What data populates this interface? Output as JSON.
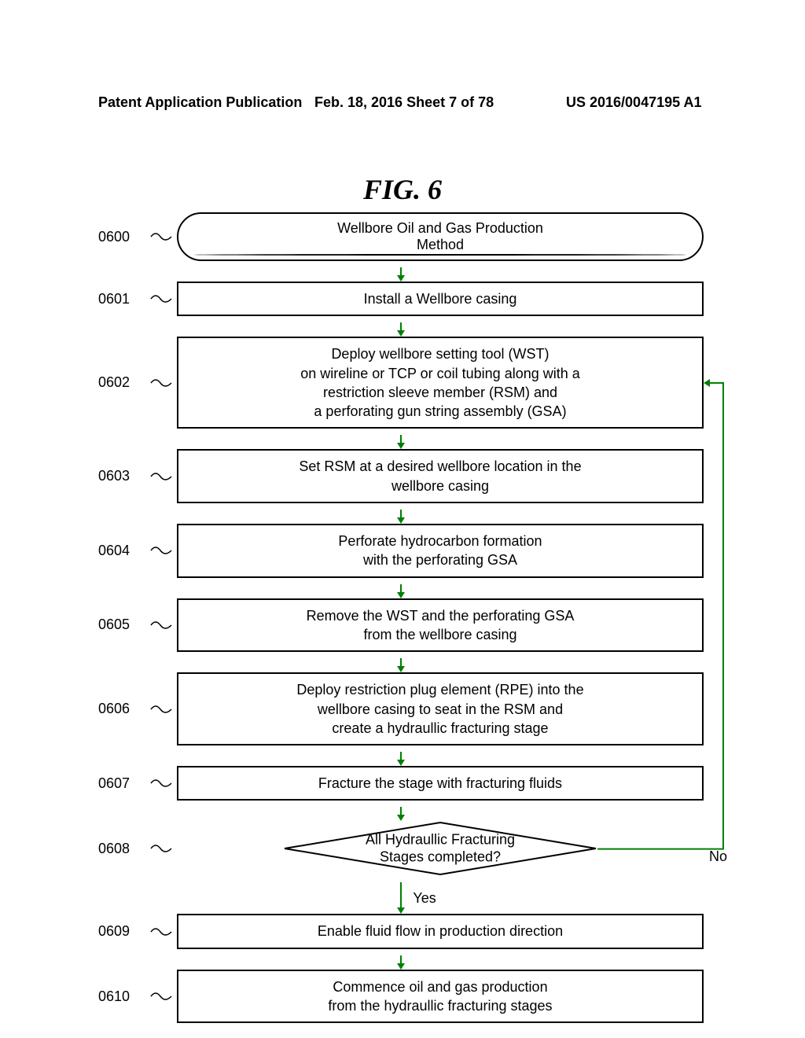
{
  "header": {
    "left": "Patent Application Publication",
    "center": "Feb. 18, 2016  Sheet 7 of 78",
    "right": "US 2016/0047195 A1"
  },
  "figure_title": "FIG. 6",
  "flowchart": {
    "nodes": [
      {
        "ref": "0600",
        "type": "start",
        "text": "Wellbore Oil and Gas Production\nMethod"
      },
      {
        "ref": "0601",
        "type": "process",
        "text": "Install a Wellbore casing"
      },
      {
        "ref": "0602",
        "type": "process",
        "text": "Deploy wellbore setting tool (WST)\non wireline or TCP or coil tubing along with a\nrestriction sleeve member (RSM) and\na perforating gun string assembly (GSA)"
      },
      {
        "ref": "0603",
        "type": "process",
        "text": "Set  RSM at a desired wellbore location in the\nwellbore casing"
      },
      {
        "ref": "0604",
        "type": "process",
        "text": "Perforate hydrocarbon formation\nwith the perforating GSA"
      },
      {
        "ref": "0605",
        "type": "process",
        "text": "Remove the WST  and the perforating GSA\nfrom the wellbore casing"
      },
      {
        "ref": "0606",
        "type": "process",
        "text": "Deploy restriction plug element (RPE) into the\nwellbore casing to seat in the RSM and\ncreate a hydraullic fracturing stage"
      },
      {
        "ref": "0607",
        "type": "process",
        "text": "Fracture the stage with fracturing fluids"
      },
      {
        "ref": "0608",
        "type": "decision",
        "text": "All Hydraullic Fracturing\nStages completed?",
        "yes_label": "Yes",
        "no_label": "No"
      },
      {
        "ref": "0609",
        "type": "process",
        "text": "Enable fluid flow in production direction"
      },
      {
        "ref": "0610",
        "type": "process",
        "text": "Commence oil and gas  production\nfrom the hydraullic fracturing stages"
      }
    ],
    "arrow_color": "#008000",
    "border_color": "#000000",
    "line_width": 2,
    "background_color": "#ffffff",
    "font_size": 18
  }
}
